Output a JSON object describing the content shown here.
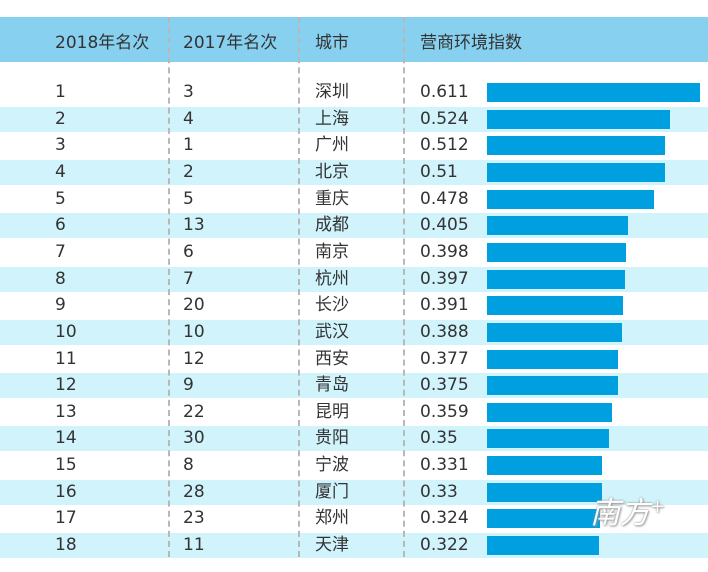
{
  "headers": [
    "2018年名次",
    "2017年名次",
    "城市",
    "营商环境指数"
  ],
  "watermark": "南方+",
  "colors": {
    "header": "#87d0f0",
    "row_alt": "#d0f3fc",
    "bar": "#00a0e0"
  },
  "chart_data": {
    "type": "table",
    "columns": [
      "2018年名次",
      "2017年名次",
      "城市",
      "营商环境指数"
    ],
    "rows": [
      {
        "rank2018": "1",
        "rank2017": "3",
        "city": "深圳",
        "index": "0.611"
      },
      {
        "rank2018": "2",
        "rank2017": "4",
        "city": "上海",
        "index": "0.524"
      },
      {
        "rank2018": "3",
        "rank2017": "1",
        "city": "广州",
        "index": "0.512"
      },
      {
        "rank2018": "4",
        "rank2017": "2",
        "city": "北京",
        "index": "0.51"
      },
      {
        "rank2018": "5",
        "rank2017": "5",
        "city": "重庆",
        "index": "0.478"
      },
      {
        "rank2018": "6",
        "rank2017": "13",
        "city": "成都",
        "index": "0.405"
      },
      {
        "rank2018": "7",
        "rank2017": "6",
        "city": "南京",
        "index": "0.398"
      },
      {
        "rank2018": "8",
        "rank2017": "7",
        "city": "杭州",
        "index": "0.397"
      },
      {
        "rank2018": "9",
        "rank2017": "20",
        "city": "长沙",
        "index": "0.391"
      },
      {
        "rank2018": "10",
        "rank2017": "10",
        "city": "武汉",
        "index": "0.388"
      },
      {
        "rank2018": "11",
        "rank2017": "12",
        "city": "西安",
        "index": "0.377"
      },
      {
        "rank2018": "12",
        "rank2017": "9",
        "city": "青岛",
        "index": "0.375"
      },
      {
        "rank2018": "13",
        "rank2017": "22",
        "city": "昆明",
        "index": "0.359"
      },
      {
        "rank2018": "14",
        "rank2017": "30",
        "city": "贵阳",
        "index": "0.35"
      },
      {
        "rank2018": "15",
        "rank2017": "8",
        "city": "宁波",
        "index": "0.331"
      },
      {
        "rank2018": "16",
        "rank2017": "28",
        "city": "厦门",
        "index": "0.33"
      },
      {
        "rank2018": "17",
        "rank2017": "23",
        "city": "郑州",
        "index": "0.324"
      },
      {
        "rank2018": "18",
        "rank2017": "11",
        "city": "天津",
        "index": "0.322"
      }
    ],
    "bar_column": "营商环境指数",
    "xlim": [
      0,
      0.611
    ]
  }
}
